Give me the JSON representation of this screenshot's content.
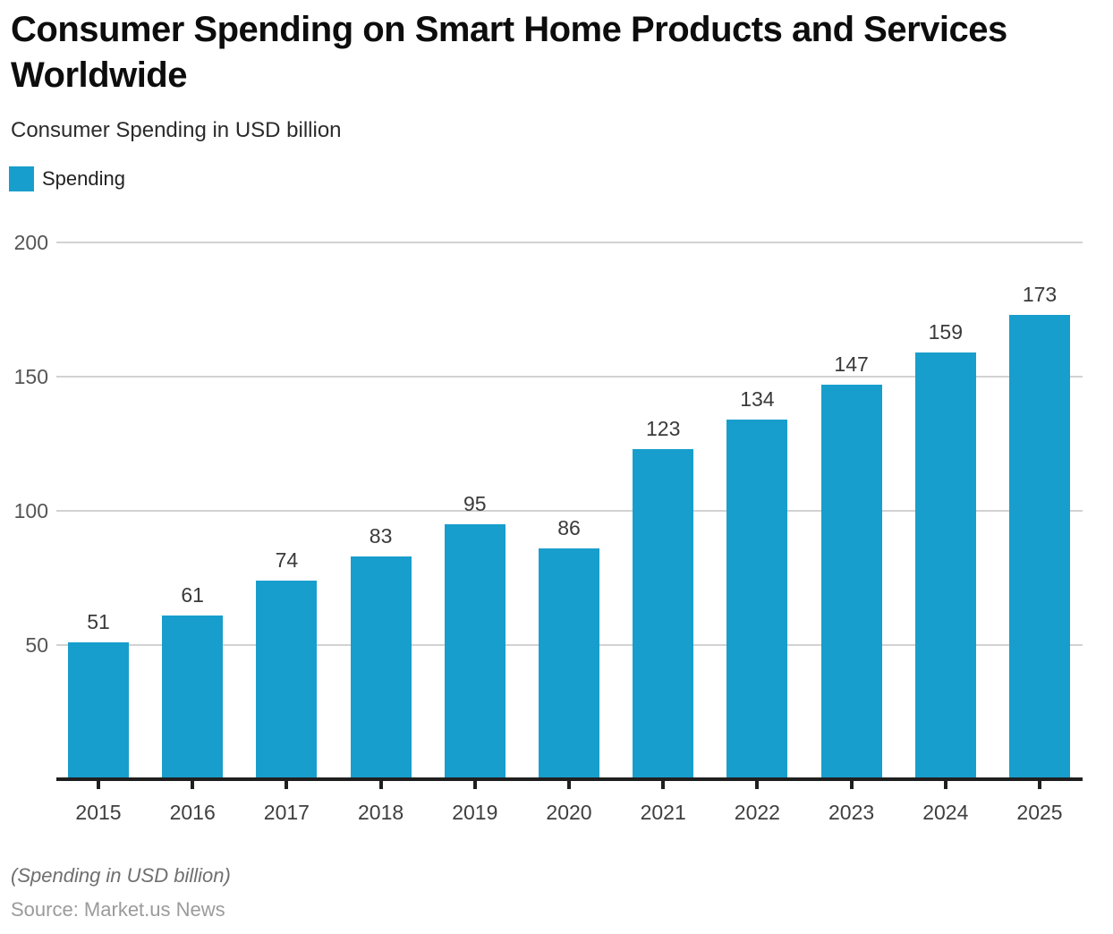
{
  "header": {
    "title": "Consumer Spending on Smart Home Products and Services Worldwide",
    "subtitle": "Consumer Spending in USD billion"
  },
  "legend": {
    "label": "Spending",
    "swatch_color": "#189ECC"
  },
  "chart_data": {
    "type": "bar",
    "title": "Consumer Spending on Smart Home Products and Services Worldwide",
    "subtitle": "Consumer Spending in USD billion",
    "categories": [
      "2015",
      "2016",
      "2017",
      "2018",
      "2019",
      "2020",
      "2021",
      "2022",
      "2023",
      "2024",
      "2025"
    ],
    "series": [
      {
        "name": "Spending",
        "values": [
          51,
          61,
          74,
          83,
          95,
          86,
          123,
          134,
          147,
          159,
          173
        ]
      }
    ],
    "ylabel": "Consumer Spending in USD billion",
    "ylim": [
      0,
      200
    ],
    "yticks": [
      50,
      100,
      150,
      200
    ],
    "grid": "horizontal",
    "value_labels": true,
    "legend_position": "top-left",
    "bar_color": "#189ECC",
    "gridline_color": "#d2d2d2",
    "axis_color": "#1f1f1f"
  },
  "footer": {
    "note": "(Spending in USD billion)",
    "source": "Source: Market.us News"
  }
}
